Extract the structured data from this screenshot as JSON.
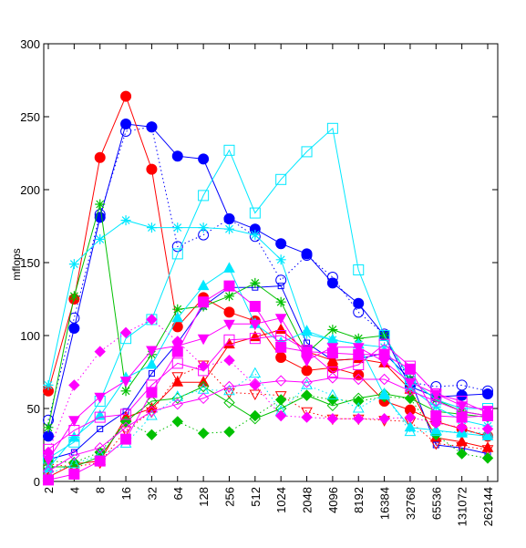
{
  "chart_data": {
    "type": "line",
    "title": "",
    "xlabel": "",
    "ylabel": "mflops",
    "x_scale": "log2",
    "categories": [
      "2",
      "4",
      "8",
      "16",
      "32",
      "64",
      "128",
      "256",
      "512",
      "1024",
      "2048",
      "4096",
      "8192",
      "16384",
      "32768",
      "65536",
      "131072",
      "262144"
    ],
    "ylim": [
      0,
      300
    ],
    "yticks": [
      0,
      50,
      100,
      150,
      200,
      250,
      300
    ],
    "grid": false,
    "legend": "none",
    "series": [
      {
        "color": "#0000ff",
        "style": "solid",
        "marker": "circle-filled",
        "values": [
          31,
          105,
          181,
          245,
          243,
          223,
          221,
          180,
          173,
          163,
          156,
          136,
          122,
          100,
          65,
          58,
          59,
          60
        ]
      },
      {
        "color": "#0000ff",
        "style": "dotted",
        "marker": "circle-open",
        "values": [
          42,
          112,
          183,
          240,
          243,
          161,
          169,
          180,
          168,
          138,
          155,
          140,
          116,
          101,
          68,
          65,
          66,
          62
        ]
      },
      {
        "color": "#0000ff",
        "style": "solid",
        "marker": "square-small",
        "values": [
          15,
          20,
          36,
          48,
          74,
          95,
          120,
          133,
          133,
          134,
          95,
          83,
          84,
          88,
          70,
          25,
          23,
          19
        ]
      },
      {
        "color": "#ff0000",
        "style": "solid",
        "marker": "circle-filled",
        "values": [
          62,
          125,
          222,
          264,
          214,
          106,
          126,
          116,
          110,
          85,
          76,
          78,
          73,
          55,
          49,
          41,
          36,
          31
        ]
      },
      {
        "color": "#ff0000",
        "style": "solid",
        "marker": "triangle-filled",
        "values": [
          3,
          12,
          14,
          44,
          50,
          68,
          68,
          94,
          99,
          104,
          89,
          83,
          84,
          81,
          63,
          30,
          27,
          23
        ]
      },
      {
        "color": "#ff0000",
        "style": "dotted",
        "marker": "triangle-down-open",
        "values": [
          12,
          10,
          13,
          35,
          48,
          72,
          80,
          61,
          60,
          59,
          48,
          43,
          43,
          42,
          41,
          26,
          24,
          22
        ]
      },
      {
        "color": "#00c000",
        "style": "solid",
        "marker": "star",
        "values": [
          37,
          127,
          190,
          62,
          87,
          118,
          120,
          127,
          136,
          123,
          88,
          104,
          98,
          100,
          70,
          56,
          48,
          45
        ]
      },
      {
        "color": "#00c000",
        "style": "dotted",
        "marker": "diamond-filled",
        "values": [
          14,
          13,
          20,
          41,
          32,
          41,
          33,
          34,
          45,
          56,
          59,
          56,
          55,
          58,
          57,
          32,
          19,
          16
        ]
      },
      {
        "color": "#00c000",
        "style": "solid",
        "marker": "diamond-open",
        "values": [
          10,
          10,
          17,
          41,
          55,
          57,
          65,
          54,
          43,
          50,
          59,
          52,
          57,
          60,
          57,
          48,
          46,
          44
        ]
      },
      {
        "color": "#00e8ff",
        "style": "solid",
        "marker": "square-open",
        "values": [
          16,
          27,
          55,
          98,
          111,
          156,
          196,
          227,
          184,
          207,
          226,
          242,
          145,
          100,
          70,
          56,
          50,
          50
        ]
      },
      {
        "color": "#00e8ff",
        "style": "solid",
        "marker": "star",
        "values": [
          66,
          149,
          166,
          179,
          174,
          174,
          174,
          173,
          169,
          152,
          101,
          97,
          94,
          92,
          64,
          51,
          42,
          38
        ]
      },
      {
        "color": "#00e8ff",
        "style": "solid",
        "marker": "triangle-filled",
        "values": [
          9,
          30,
          45,
          71,
          80,
          112,
          134,
          146,
          108,
          95,
          103,
          97,
          94,
          59,
          37,
          35,
          33,
          31
        ]
      },
      {
        "color": "#00e8ff",
        "style": "dotted",
        "marker": "triangle-open",
        "values": [
          5,
          12,
          18,
          26,
          45,
          58,
          63,
          62,
          74,
          48,
          66,
          59,
          50,
          60,
          34,
          34,
          34,
          33
        ]
      },
      {
        "color": "#ff00ff",
        "style": "solid",
        "marker": "square-filled",
        "values": [
          1,
          5,
          14,
          29,
          61,
          89,
          123,
          134,
          120,
          92,
          89,
          88,
          87,
          87,
          77,
          45,
          44,
          45
        ]
      },
      {
        "color": "#ff00ff",
        "style": "solid",
        "marker": "triangle-down-filled",
        "values": [
          15,
          42,
          58,
          69,
          90,
          93,
          98,
          108,
          108,
          112,
          83,
          92,
          92,
          82,
          68,
          60,
          52,
          49
        ]
      },
      {
        "color": "#ff00ff",
        "style": "dotted",
        "marker": "diamond-filled",
        "values": [
          20,
          66,
          89,
          102,
          111,
          96,
          79,
          83,
          66,
          45,
          44,
          43,
          43,
          43,
          44,
          40,
          37,
          36
        ]
      },
      {
        "color": "#ff00ff",
        "style": "solid",
        "marker": "diamond-open",
        "values": [
          7,
          18,
          23,
          37,
          48,
          53,
          57,
          65,
          67,
          69,
          68,
          71,
          70,
          70,
          62,
          55,
          48,
          45
        ]
      },
      {
        "color": "#ff00ff",
        "style": "solid",
        "marker": "square-open",
        "values": [
          22,
          35,
          44,
          46,
          66,
          81,
          76,
          97,
          98,
          100,
          90,
          75,
          80,
          94,
          79,
          60,
          55,
          47
        ]
      }
    ]
  }
}
